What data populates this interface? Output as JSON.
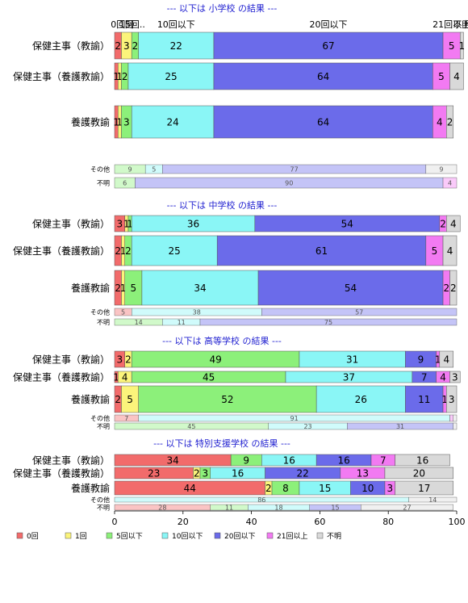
{
  "chart_data": {
    "type": "bar",
    "orientation": "horizontal",
    "stacked": true,
    "xlim": [
      0,
      100
    ],
    "x_ticks": [
      "0",
      "20",
      "40",
      "60",
      "80",
      "100"
    ],
    "category_labels": [
      "0回",
      "1回",
      "5回以下",
      "10回以下",
      "20回以下",
      "21回以上",
      "不明"
    ],
    "colors": [
      "#f26b6b",
      "#fbf47b",
      "#8cf07a",
      "#8af6f6",
      "#6b6bea",
      "#f27af2",
      "#d9d9d9"
    ],
    "top_labels": [
      "0回",
      "1回",
      "5回..",
      "10回以下",
      "20回以下",
      "21回以上",
      "不明"
    ],
    "legend": {
      "position": "bottom-left",
      "labels": [
        "0回",
        "1回",
        "5回以下",
        "10回以下",
        "20回以下",
        "21回以上",
        "不明"
      ]
    },
    "sections": [
      {
        "title": "--- 以下は 小学校 の結果 ---",
        "rows": [
          {
            "label": "保健主事（教諭）",
            "kind": "main",
            "values": [
              2,
              3,
              2,
              22,
              67,
              5,
              1
            ],
            "data_labels": [
              "2",
              "3",
              "2",
              "22",
              "67",
              "5",
              "1"
            ]
          },
          {
            "label": "保健主事（養護教諭）",
            "kind": "main",
            "values": [
              1,
              1,
              2,
              25,
              64,
              5,
              4
            ],
            "data_labels": [
              "1",
              "1",
              "2",
              "25",
              "64",
              "5",
              "4"
            ]
          },
          {
            "label": "養護教諭",
            "kind": "main",
            "values": [
              1,
              1,
              3,
              24,
              64,
              4,
              2
            ],
            "data_labels": [
              "1",
              "1",
              "3",
              "24",
              "64",
              "4",
              "2"
            ]
          },
          {
            "label": "その他",
            "kind": "small",
            "values": [
              0,
              0,
              9,
              5,
              77,
              0,
              9
            ],
            "data_labels": [
              "",
              "",
              "9",
              "5",
              "77",
              "",
              "9"
            ]
          },
          {
            "label": "不明",
            "kind": "small",
            "values": [
              0,
              0,
              6,
              0,
              90,
              4,
              0
            ],
            "data_labels": [
              "",
              "",
              "6",
              "",
              "90",
              "4",
              ""
            ]
          }
        ]
      },
      {
        "title": "--- 以下は 中学校 の結果 ---",
        "rows": [
          {
            "label": "保健主事（教諭）",
            "kind": "main",
            "values": [
              3,
              1,
              1,
              36,
              54,
              2,
              4
            ],
            "data_labels": [
              "3",
              "1",
              "1",
              "36",
              "54",
              "2",
              "4"
            ]
          },
          {
            "label": "保健主事（養護教諭）",
            "kind": "main",
            "values": [
              2,
              1,
              2,
              25,
              61,
              5,
              4
            ],
            "data_labels": [
              "2",
              "1",
              "2",
              "25",
              "61",
              "5",
              "4"
            ]
          },
          {
            "label": "養護教諭",
            "kind": "main",
            "values": [
              2,
              1,
              5,
              34,
              54,
              2,
              2
            ],
            "data_labels": [
              "2",
              "1",
              "5",
              "34",
              "54",
              "2",
              "2"
            ]
          },
          {
            "label": "その他",
            "kind": "small",
            "values": [
              5,
              0,
              0,
              38,
              57,
              0,
              0
            ],
            "data_labels": [
              "5",
              "",
              "",
              "38",
              "57",
              "",
              ""
            ]
          },
          {
            "label": "不明",
            "kind": "small",
            "values": [
              0,
              0,
              14,
              11,
              75,
              0,
              0
            ],
            "data_labels": [
              "",
              "",
              "14",
              "11",
              "75",
              "",
              ""
            ]
          }
        ]
      },
      {
        "title": "--- 以下は 高等学校 の結果 ---",
        "rows": [
          {
            "label": "保健主事（教諭）",
            "kind": "main",
            "values": [
              3,
              2,
              49,
              31,
              9,
              1,
              4
            ],
            "data_labels": [
              "3",
              "2",
              "49",
              "31",
              "9",
              "1",
              "4"
            ]
          },
          {
            "label": "保健主事（養護教諭）",
            "kind": "main",
            "values": [
              1,
              4,
              45,
              37,
              7,
              4,
              3
            ],
            "data_labels": [
              "1",
              "4",
              "45",
              "37",
              "7",
              "4",
              "3"
            ]
          },
          {
            "label": "養護教諭",
            "kind": "main",
            "values": [
              2,
              5,
              52,
              26,
              11,
              1,
              3
            ],
            "data_labels": [
              "2",
              "5",
              "52",
              "26",
              "11",
              "1",
              "3"
            ]
          },
          {
            "label": "その他",
            "kind": "small",
            "values": [
              7,
              0,
              0,
              91,
              0,
              1,
              1
            ],
            "data_labels": [
              "7",
              "",
              "",
              "91",
              "",
              "",
              ""
            ]
          },
          {
            "label": "不明",
            "kind": "small",
            "values": [
              0,
              0,
              45,
              23,
              31,
              0,
              1
            ],
            "data_labels": [
              "",
              "",
              "45",
              "23",
              "31",
              "",
              ""
            ]
          }
        ]
      },
      {
        "title": "--- 以下は 特別支援学校 の結果 ---",
        "rows": [
          {
            "label": "保健主事（教諭）",
            "kind": "main",
            "values": [
              34,
              0,
              9,
              16,
              16,
              7,
              16
            ],
            "data_labels": [
              "34",
              "",
              "9",
              "16",
              "16",
              "7",
              "16"
            ]
          },
          {
            "label": "保健主事（養護教諭）",
            "kind": "main",
            "values": [
              23,
              2,
              3,
              16,
              22,
              13,
              20
            ],
            "data_labels": [
              "23",
              "2",
              "3",
              "16",
              "22",
              "13",
              "20"
            ]
          },
          {
            "label": "養護教諭",
            "kind": "main",
            "values": [
              44,
              2,
              8,
              15,
              10,
              3,
              17
            ],
            "data_labels": [
              "44",
              "2",
              "8",
              "15",
              "10",
              "3",
              "17"
            ]
          },
          {
            "label": "その他",
            "kind": "small",
            "values": [
              0,
              0,
              0,
              86,
              0,
              0,
              14
            ],
            "data_labels": [
              "",
              "",
              "",
              "86",
              "",
              "",
              "14"
            ]
          },
          {
            "label": "不明",
            "kind": "small",
            "values": [
              28,
              0,
              11,
              18,
              15,
              0,
              27
            ],
            "data_labels": [
              "28",
              "",
              "11",
              "18",
              "15",
              "",
              "27"
            ]
          }
        ]
      }
    ]
  }
}
